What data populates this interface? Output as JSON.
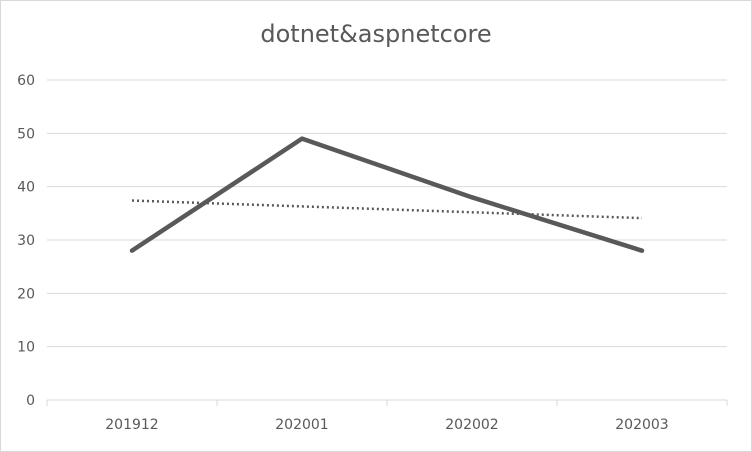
{
  "chart_data": {
    "type": "line",
    "title": "dotnet&aspnetcore",
    "categories": [
      "201912",
      "202001",
      "202002",
      "202003"
    ],
    "series": [
      {
        "values": [
          28,
          49,
          38,
          28
        ],
        "color": "#595959",
        "style": "solid"
      }
    ],
    "trendline": {
      "type": "linear",
      "style": "dotted",
      "color": "#595959"
    },
    "ylim": [
      0,
      60
    ],
    "yticks": [
      0,
      10,
      20,
      30,
      40,
      50,
      60
    ],
    "grid": true,
    "xlabel": "",
    "ylabel": ""
  }
}
